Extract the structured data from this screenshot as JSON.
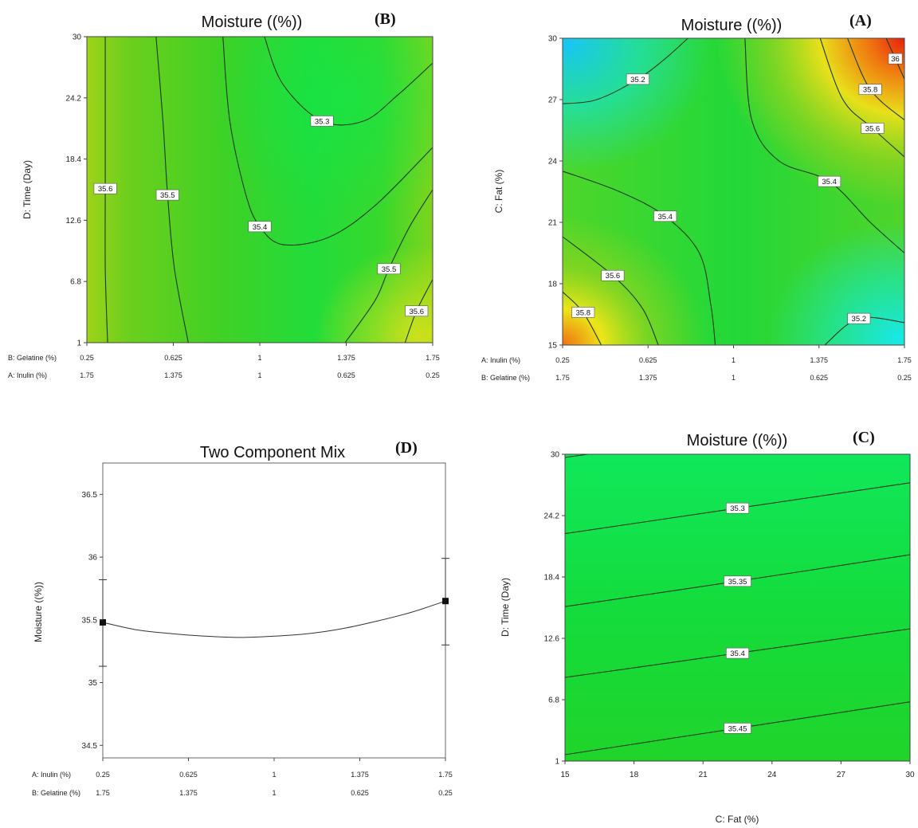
{
  "colors": {
    "line": "#1b3a1b",
    "label_bg": "#ffffff"
  },
  "chart_data": [
    {
      "panel_label": "(B)",
      "type": "contour",
      "title": "Moisture  ((%))",
      "ylabel": "D: Time (Day)",
      "x_axes": [
        {
          "name": "B: Gelatine (%)",
          "ticks": [
            "0.25",
            "0.625",
            "1",
            "1.375",
            "1.75"
          ]
        },
        {
          "name": "A: Inulin (%)",
          "ticks": [
            "1.75",
            "1.375",
            "1",
            "0.625",
            "0.25"
          ]
        }
      ],
      "xlim": [
        0.25,
        1.75
      ],
      "ylim": [
        1,
        30
      ],
      "y_ticks": [
        "1",
        "6.8",
        "12.6",
        "18.4",
        "24.2",
        "30"
      ],
      "contours": [
        {
          "label": "35.6",
          "label_at": [
            0.33,
            15.6
          ],
          "points": [
            [
              0.34,
              1
            ],
            [
              0.33,
              8
            ],
            [
              0.33,
              15.6
            ],
            [
              0.33,
              22
            ],
            [
              0.33,
              30
            ]
          ]
        },
        {
          "label": "35.5",
          "label_at": [
            0.6,
            15.0
          ],
          "points": [
            [
              0.69,
              1
            ],
            [
              0.63,
              8
            ],
            [
              0.6,
              15
            ],
            [
              0.58,
              22
            ],
            [
              0.55,
              30
            ]
          ]
        },
        {
          "label": "35.5",
          "label_at": [
            1.56,
            8.0
          ],
          "points": [
            [
              1.37,
              1
            ],
            [
              1.5,
              5
            ],
            [
              1.56,
              8
            ],
            [
              1.65,
              12
            ],
            [
              1.75,
              15.5
            ]
          ]
        },
        {
          "label": "35.4",
          "label_at": [
            1.0,
            12.0
          ],
          "points": [
            [
              0.84,
              30
            ],
            [
              0.87,
              22
            ],
            [
              0.94,
              15
            ],
            [
              1.0,
              12
            ],
            [
              1.1,
              10.3
            ],
            [
              1.3,
              11
            ],
            [
              1.5,
              14
            ],
            [
              1.75,
              19.5
            ]
          ]
        },
        {
          "label": "35.3",
          "label_at": [
            1.27,
            22.0
          ],
          "points": [
            [
              1.02,
              30
            ],
            [
              1.1,
              25.5
            ],
            [
              1.27,
              22
            ],
            [
              1.45,
              22
            ],
            [
              1.6,
              24.5
            ],
            [
              1.75,
              27.5
            ]
          ]
        },
        {
          "label": "35.6",
          "label_at": [
            1.68,
            4.0
          ],
          "points": [
            [
              1.63,
              1
            ],
            [
              1.68,
              4
            ],
            [
              1.75,
              7
            ]
          ]
        }
      ]
    },
    {
      "panel_label": "(A)",
      "type": "contour",
      "title": "Moisture  ((%))",
      "ylabel": "C: Fat (%)",
      "x_axes": [
        {
          "name": "A: Inulin (%)",
          "ticks": [
            "0.25",
            "0.625",
            "1",
            "1.375",
            "1.75"
          ]
        },
        {
          "name": "B: Gelatine (%)",
          "ticks": [
            "1.75",
            "1.375",
            "1",
            "0.625",
            "0.25"
          ]
        }
      ],
      "xlim": [
        0.25,
        1.75
      ],
      "ylim": [
        15,
        30
      ],
      "y_ticks": [
        "15",
        "18",
        "21",
        "24",
        "27",
        "30"
      ],
      "contours": [
        {
          "label": "35.2",
          "label_at": [
            0.58,
            28.0
          ],
          "points": [
            [
              0.25,
              26.8
            ],
            [
              0.4,
              27.0
            ],
            [
              0.58,
              28.0
            ],
            [
              0.7,
              29.0
            ],
            [
              0.8,
              30
            ]
          ]
        },
        {
          "label": "35.4",
          "label_at": [
            0.7,
            21.3
          ],
          "points": [
            [
              0.25,
              23.5
            ],
            [
              0.5,
              22.5
            ],
            [
              0.7,
              21.3
            ],
            [
              0.85,
              19.5
            ],
            [
              0.9,
              17
            ],
            [
              0.92,
              15
            ]
          ]
        },
        {
          "label": "35.4",
          "label_at": [
            1.42,
            23.0
          ],
          "points": [
            [
              1.05,
              30
            ],
            [
              1.08,
              26
            ],
            [
              1.2,
              24
            ],
            [
              1.42,
              23.0
            ],
            [
              1.6,
              21
            ],
            [
              1.75,
              19.5
            ]
          ]
        },
        {
          "label": "35.6",
          "label_at": [
            0.47,
            18.4
          ],
          "points": [
            [
              0.25,
              20.3
            ],
            [
              0.47,
              18.4
            ],
            [
              0.6,
              16.8
            ],
            [
              0.67,
              15
            ]
          ]
        },
        {
          "label": "35.8",
          "label_at": [
            0.34,
            16.6
          ],
          "points": [
            [
              0.25,
              17.6
            ],
            [
              0.34,
              16.6
            ],
            [
              0.42,
              15
            ]
          ]
        },
        {
          "label": "35.6",
          "label_at": [
            1.61,
            25.6
          ],
          "points": [
            [
              1.38,
              30
            ],
            [
              1.48,
              27
            ],
            [
              1.61,
              25.6
            ],
            [
              1.75,
              24.2
            ]
          ]
        },
        {
          "label": "35.8",
          "label_at": [
            1.6,
            27.5
          ],
          "points": [
            [
              1.5,
              30
            ],
            [
              1.6,
              27.5
            ],
            [
              1.75,
              26
            ]
          ]
        },
        {
          "label": "36",
          "label_at": [
            1.71,
            29.0
          ],
          "points": [
            [
              1.67,
              30
            ],
            [
              1.71,
              29.0
            ],
            [
              1.75,
              28
            ]
          ]
        },
        {
          "label": "35.2",
          "label_at": [
            1.55,
            16.3
          ],
          "points": [
            [
              1.4,
              15
            ],
            [
              1.55,
              16.3
            ],
            [
              1.75,
              16.1
            ]
          ]
        }
      ]
    },
    {
      "panel_label": "(D)",
      "type": "line",
      "title": "Two Component Mix",
      "ylabel": "Moisture  ((%))",
      "x_axes": [
        {
          "name": "A: Inulin (%)",
          "ticks": [
            "0.25",
            "0.625",
            "1",
            "1.375",
            "1.75"
          ]
        },
        {
          "name": "B: Gelatine (%)",
          "ticks": [
            "1.75",
            "1.375",
            "1",
            "0.625",
            "0.25"
          ]
        }
      ],
      "xlim": [
        0.25,
        1.75
      ],
      "ylim": [
        34.4,
        36.75
      ],
      "y_ticks": [
        "34.5",
        "35",
        "35.5",
        "36",
        "36.5"
      ],
      "curve_x": [
        0.25,
        0.4,
        0.55,
        0.7,
        0.85,
        1.0,
        1.15,
        1.3,
        1.45,
        1.6,
        1.75
      ],
      "curve_y": [
        35.48,
        35.42,
        35.39,
        35.37,
        35.36,
        35.37,
        35.39,
        35.43,
        35.49,
        35.56,
        35.65
      ],
      "points": [
        {
          "x": 0.25,
          "y": 35.48,
          "low": 35.13,
          "high": 35.82
        },
        {
          "x": 1.75,
          "y": 35.65,
          "low": 35.3,
          "high": 35.99
        }
      ]
    },
    {
      "panel_label": "(C)",
      "type": "contour",
      "title": "Moisture  ((%))",
      "xlabel": "C: Fat (%)",
      "ylabel": "D: Time (Day)",
      "xlim": [
        15,
        30
      ],
      "ylim": [
        1,
        30
      ],
      "x_ticks": [
        "15",
        "18",
        "21",
        "24",
        "27",
        "30"
      ],
      "y_ticks": [
        "1",
        "6.8",
        "12.6",
        "18.4",
        "24.2",
        "30"
      ],
      "contours": [
        {
          "label": "35.3",
          "label_at": [
            22.5,
            24.9
          ],
          "points": [
            [
              15,
              22.5
            ],
            [
              22.5,
              24.9
            ],
            [
              30,
              27.3
            ]
          ]
        },
        {
          "label": "35.35",
          "label_at": [
            22.5,
            18.0
          ],
          "points": [
            [
              15,
              15.6
            ],
            [
              22.5,
              18.0
            ],
            [
              30,
              20.5
            ]
          ]
        },
        {
          "label": "35.4",
          "label_at": [
            22.5,
            11.2
          ],
          "points": [
            [
              15,
              8.9
            ],
            [
              22.5,
              11.2
            ],
            [
              30,
              13.5
            ]
          ]
        },
        {
          "label": "35.45",
          "label_at": [
            22.5,
            4.1
          ],
          "points": [
            [
              15,
              1.6
            ],
            [
              22.5,
              4.1
            ],
            [
              30,
              6.6
            ]
          ]
        },
        {
          "label": "",
          "label_at": null,
          "points": [
            [
              15,
              29.7
            ],
            [
              16,
              30
            ]
          ]
        }
      ]
    }
  ]
}
